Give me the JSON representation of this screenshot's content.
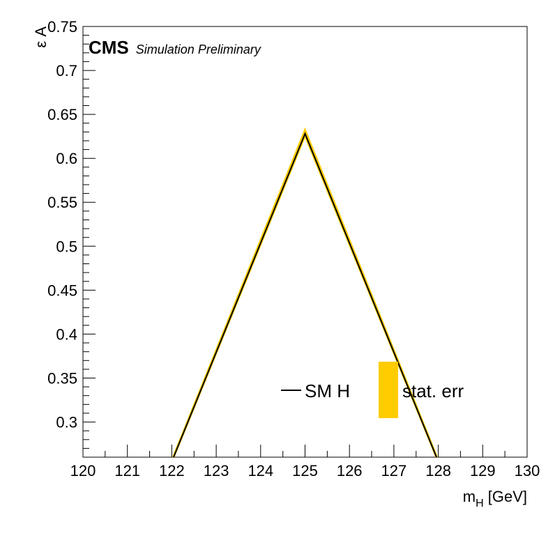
{
  "chart_data": {
    "type": "line",
    "xlabel_main": "m",
    "xlabel_sub": "H",
    "xlabel_unit": " [GeV]",
    "ylabel": "ε A",
    "xlim": [
      120,
      130
    ],
    "ylim": [
      0.26,
      0.75
    ],
    "x_ticks": [
      120,
      121,
      122,
      123,
      124,
      125,
      126,
      127,
      128,
      129,
      130
    ],
    "x_tick_labels": [
      "120",
      "121",
      "122",
      "123",
      "124",
      "125",
      "126",
      "127",
      "128",
      "129",
      "130"
    ],
    "y_ticks": [
      0.3,
      0.35,
      0.4,
      0.45,
      0.5,
      0.55,
      0.6,
      0.65,
      0.7,
      0.75
    ],
    "y_tick_labels": [
      "0.3",
      "0.35",
      "0.4",
      "0.45",
      "0.5",
      "0.55",
      "0.6",
      "0.65",
      "0.7",
      "0.75"
    ],
    "series": [
      {
        "name": "SM H",
        "color": "#000000",
        "x": [
          122.0,
          125.0,
          128.0
        ],
        "y": [
          0.255,
          0.628,
          0.255
        ]
      }
    ],
    "error_band": {
      "name": "stat. err",
      "color": "#ffcc00",
      "x": [
        122.0,
        125.0,
        128.0
      ],
      "y_low": [
        0.253,
        0.624,
        0.253
      ],
      "y_high": [
        0.258,
        0.634,
        0.258
      ]
    },
    "legend_placement": "bottom-right",
    "grid": false
  },
  "header": {
    "cms": "CMS",
    "subtitle": "Simulation Preliminary"
  }
}
